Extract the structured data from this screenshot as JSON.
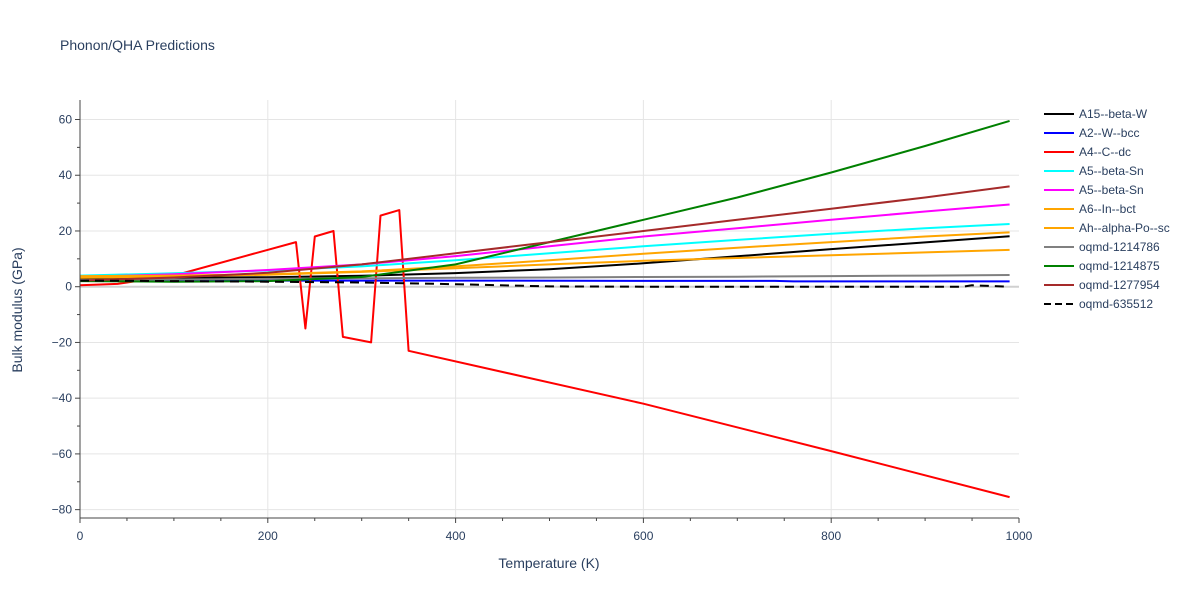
{
  "chart_data": {
    "type": "line",
    "title": "Phonon/QHA Predictions",
    "xlabel": "Temperature (K)",
    "ylabel": "Bulk modulus (GPa)",
    "xlim": [
      0,
      1000
    ],
    "ylim": [
      -83,
      67
    ],
    "x_ticks": [
      0,
      200,
      400,
      600,
      800,
      1000
    ],
    "y_ticks": [
      -80,
      -60,
      -40,
      -20,
      0,
      20,
      40,
      60
    ],
    "grid": true,
    "legend_position": "right",
    "series": [
      {
        "name": "A15--beta-W",
        "color": "#000000",
        "dash": "solid",
        "points": [
          [
            0,
            3
          ],
          [
            100,
            3.2
          ],
          [
            200,
            3.4
          ],
          [
            300,
            3.9
          ],
          [
            400,
            4.9
          ],
          [
            500,
            6.3
          ],
          [
            600,
            8.4
          ],
          [
            700,
            10.9
          ],
          [
            800,
            13.5
          ],
          [
            900,
            15.9
          ],
          [
            990,
            18.1
          ]
        ]
      },
      {
        "name": "A2--W--bcc",
        "color": "#0000ff",
        "dash": "solid",
        "points": [
          [
            0,
            2.3
          ],
          [
            200,
            2.2
          ],
          [
            400,
            2.2
          ],
          [
            600,
            2.1
          ],
          [
            740,
            2.1
          ],
          [
            760,
            1.9
          ],
          [
            900,
            1.9
          ],
          [
            990,
            1.9
          ]
        ]
      },
      {
        "name": "A4--C--dc",
        "color": "#ff0000",
        "dash": "solid",
        "points": [
          [
            0,
            0.5
          ],
          [
            40,
            1
          ],
          [
            100,
            4
          ],
          [
            230,
            16
          ],
          [
            240,
            -15
          ],
          [
            250,
            18
          ],
          [
            270,
            20
          ],
          [
            280,
            -18
          ],
          [
            310,
            -20
          ],
          [
            320,
            25.5
          ],
          [
            340,
            27.5
          ],
          [
            350,
            -23
          ],
          [
            600,
            -42
          ],
          [
            800,
            -59
          ],
          [
            990,
            -75.5
          ]
        ]
      },
      {
        "name": "A5--beta-Sn",
        "color": "#00ffff",
        "dash": "solid",
        "points": [
          [
            0,
            4
          ],
          [
            100,
            4.8
          ],
          [
            200,
            5.8
          ],
          [
            300,
            7.3
          ],
          [
            400,
            9.5
          ],
          [
            500,
            12
          ],
          [
            600,
            14.5
          ],
          [
            700,
            16.8
          ],
          [
            800,
            19
          ],
          [
            900,
            21
          ],
          [
            990,
            22.5
          ]
        ]
      },
      {
        "name": "A5--beta-Sn",
        "color": "#ff00ff",
        "dash": "solid",
        "points": [
          [
            0,
            3.5
          ],
          [
            100,
            4.5
          ],
          [
            200,
            6
          ],
          [
            300,
            8
          ],
          [
            400,
            11
          ],
          [
            500,
            14.5
          ],
          [
            600,
            18
          ],
          [
            700,
            21
          ],
          [
            800,
            24
          ],
          [
            900,
            27
          ],
          [
            990,
            29.5
          ]
        ]
      },
      {
        "name": "A6--In--bct",
        "color": "#ffa500",
        "dash": "solid",
        "points": [
          [
            0,
            3.2
          ],
          [
            100,
            3.7
          ],
          [
            200,
            4.3
          ],
          [
            300,
            5.3
          ],
          [
            400,
            6.6
          ],
          [
            500,
            8
          ],
          [
            600,
            9.3
          ],
          [
            700,
            10.3
          ],
          [
            800,
            11.3
          ],
          [
            900,
            12.3
          ],
          [
            990,
            13.2
          ]
        ]
      },
      {
        "name": "Ah--alpha-Po--sc",
        "color": "#ffa500",
        "dash": "solid",
        "points": [
          [
            0,
            3.8
          ],
          [
            100,
            4
          ],
          [
            200,
            4.5
          ],
          [
            300,
            5.5
          ],
          [
            400,
            7.3
          ],
          [
            500,
            9.5
          ],
          [
            600,
            11.8
          ],
          [
            700,
            14
          ],
          [
            800,
            16
          ],
          [
            900,
            18
          ],
          [
            990,
            19.5
          ]
        ]
      },
      {
        "name": "oqmd-1214786",
        "color": "#808080",
        "dash": "solid",
        "points": [
          [
            0,
            2.4
          ],
          [
            100,
            2.6
          ],
          [
            200,
            2.8
          ],
          [
            300,
            3
          ],
          [
            400,
            3.2
          ],
          [
            500,
            3.3
          ],
          [
            600,
            3.5
          ],
          [
            700,
            3.6
          ],
          [
            800,
            3.8
          ],
          [
            900,
            4
          ],
          [
            990,
            4.2
          ]
        ]
      },
      {
        "name": "oqmd-1214875",
        "color": "#008000",
        "dash": "solid",
        "points": [
          [
            0,
            2
          ],
          [
            100,
            1.8
          ],
          [
            200,
            2
          ],
          [
            300,
            3.5
          ],
          [
            400,
            8
          ],
          [
            500,
            16
          ],
          [
            600,
            24
          ],
          [
            700,
            32
          ],
          [
            800,
            41
          ],
          [
            900,
            50.5
          ],
          [
            990,
            59.5
          ]
        ]
      },
      {
        "name": "oqmd-1277954",
        "color": "#a52a2a",
        "dash": "solid",
        "points": [
          [
            0,
            2.2
          ],
          [
            100,
            3.3
          ],
          [
            200,
            5
          ],
          [
            300,
            8
          ],
          [
            400,
            12
          ],
          [
            500,
            16
          ],
          [
            600,
            20
          ],
          [
            700,
            24
          ],
          [
            800,
            28
          ],
          [
            900,
            32
          ],
          [
            990,
            36
          ]
        ]
      },
      {
        "name": "oqmd-635512",
        "color": "#000000",
        "dash": "dash",
        "points": [
          [
            0,
            2.2
          ],
          [
            100,
            2
          ],
          [
            200,
            1.8
          ],
          [
            300,
            1.5
          ],
          [
            400,
            0.9
          ],
          [
            500,
            0.1
          ],
          [
            600,
            0
          ],
          [
            700,
            0
          ],
          [
            740,
            0
          ],
          [
            760,
            0
          ],
          [
            900,
            0
          ],
          [
            940,
            0
          ],
          [
            950,
            0.5
          ],
          [
            990,
            0
          ]
        ]
      }
    ]
  }
}
